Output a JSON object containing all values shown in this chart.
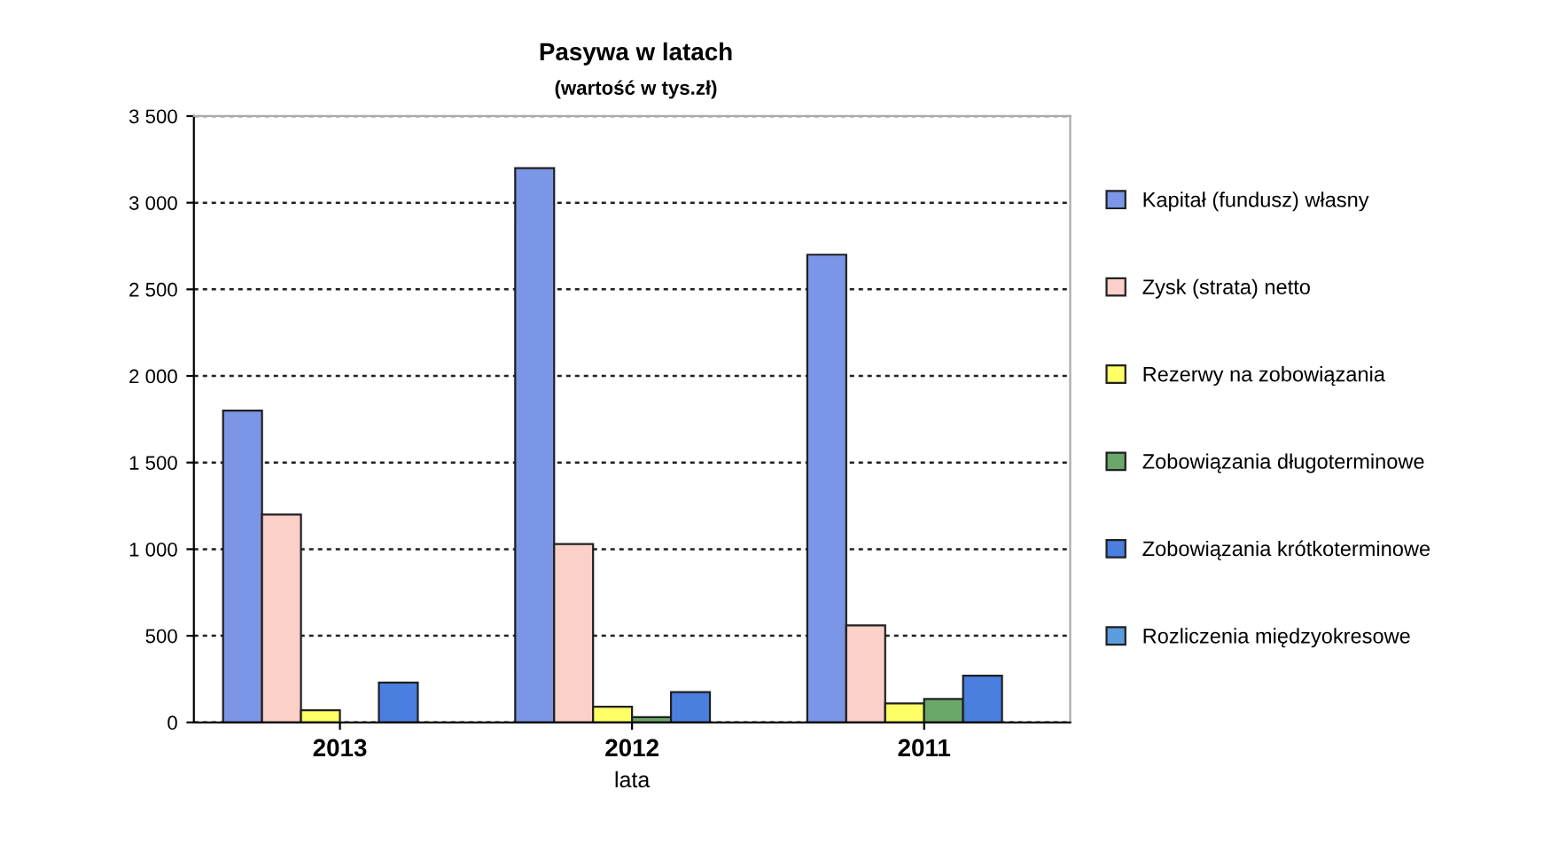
{
  "chart_data": {
    "type": "bar",
    "title": "Pasywa w latach",
    "subtitle": "(wartość w tys.zł)",
    "xlabel": "lata",
    "categories": [
      "2013",
      "2012",
      "2011"
    ],
    "series": [
      {
        "name": "Kapitał (fundusz) własny",
        "color": "#7b96e6",
        "values": [
          1800,
          3200,
          2700
        ]
      },
      {
        "name": "Zysk (strata) netto",
        "color": "#fbd0c8",
        "values": [
          1200,
          1030,
          560
        ]
      },
      {
        "name": "Rezerwy na zobowiązania",
        "color": "#ffff66",
        "values": [
          70,
          90,
          110
        ]
      },
      {
        "name": "Zobowiązania długoterminowe",
        "color": "#6aa86a",
        "values": [
          null,
          30,
          135
        ]
      },
      {
        "name": "Zobowiązania krótkoterminowe",
        "color": "#4a7fe0",
        "values": [
          230,
          175,
          270
        ]
      },
      {
        "name": "Rozliczenia międzyokresowe",
        "color": "#5b9be0",
        "values": [
          null,
          null,
          null
        ]
      }
    ],
    "ylim": [
      0,
      3500
    ],
    "yticks": [
      0,
      500,
      {
        "value": 1000,
        "label": "1 000"
      },
      {
        "value": 1500,
        "label": "1 500"
      },
      {
        "value": 2000,
        "label": "2 000"
      },
      {
        "value": 2500,
        "label": "2 500"
      },
      {
        "value": 3000,
        "label": "3 000"
      },
      {
        "value": 3500,
        "label": "3 500"
      }
    ],
    "grid": "y",
    "legend": "right"
  }
}
